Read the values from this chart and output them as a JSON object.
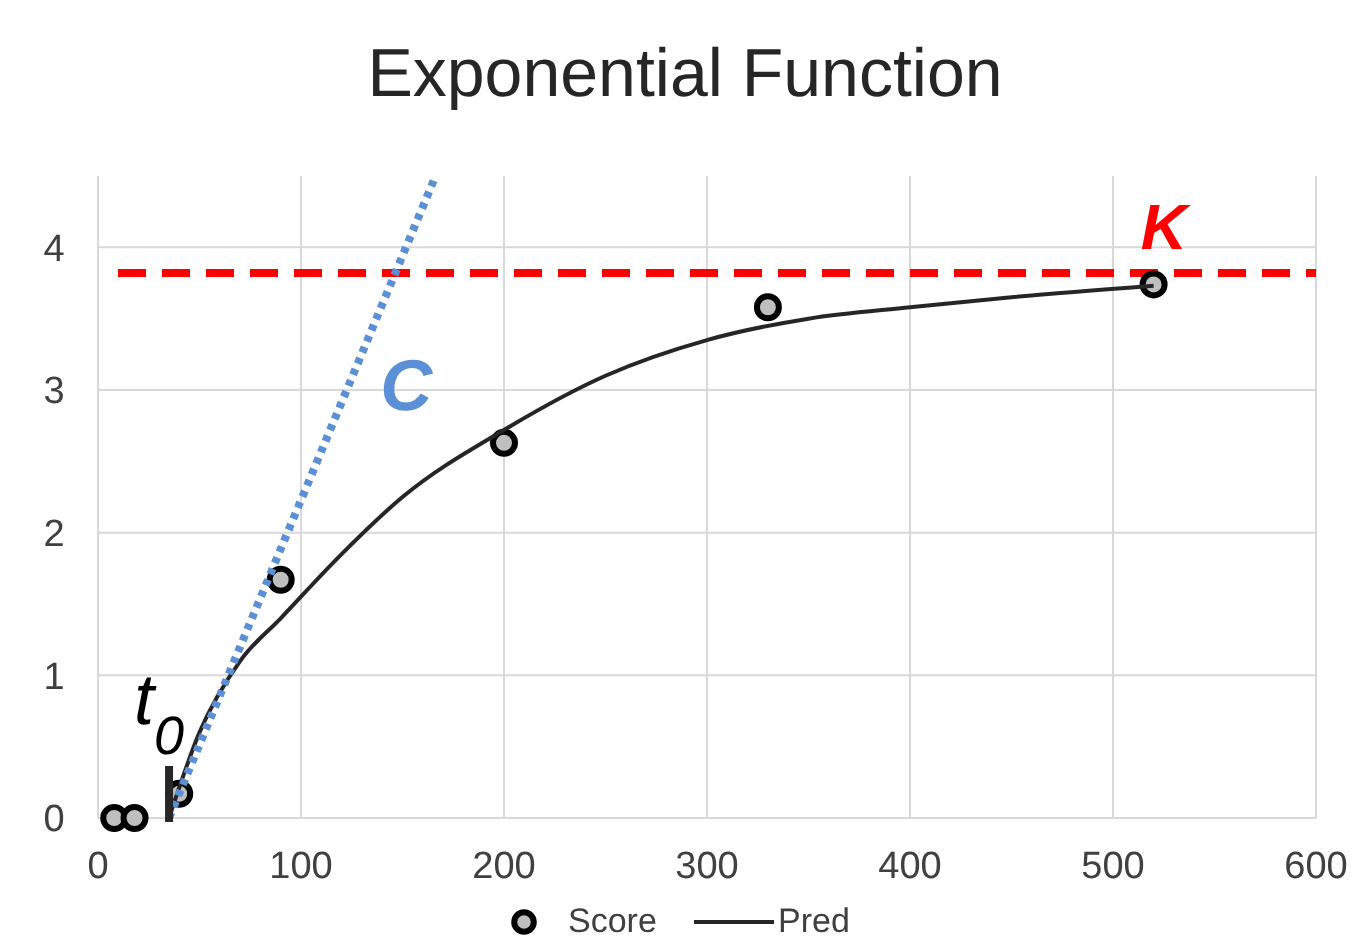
{
  "chart_data": {
    "type": "scatter",
    "title": "Exponential Function",
    "xlim": [
      0,
      600
    ],
    "ylim": [
      0,
      4.5
    ],
    "xticks": [
      0,
      100,
      200,
      300,
      400,
      500,
      600
    ],
    "yticks": [
      0,
      1,
      2,
      3,
      4
    ],
    "grid": true,
    "legend": "bottom",
    "series": [
      {
        "name": "Score",
        "marker": "circle",
        "color": "#bfbfbf",
        "x": [
          8,
          18,
          40,
          90,
          200,
          330,
          520
        ],
        "values": [
          0,
          0,
          0.17,
          1.67,
          2.63,
          3.58,
          3.74
        ]
      },
      {
        "name": "Pred",
        "type": "line",
        "line_style": "solid",
        "color": "#262626",
        "x": [
          35,
          50,
          70,
          90,
          120,
          150,
          200,
          250,
          300,
          350,
          400,
          450,
          520
        ],
        "values": [
          0,
          0.6,
          1.1,
          1.4,
          1.85,
          2.25,
          2.72,
          3.1,
          3.35,
          3.5,
          3.58,
          3.65,
          3.73
        ]
      },
      {
        "type": "line",
        "line_style": "dotted",
        "color": "#5b8fd6",
        "x": [
          35,
          166
        ],
        "values": [
          0,
          4.49
        ]
      }
    ],
    "ref_lines": [
      {
        "axis": "y",
        "value": 3.82,
        "label": "K",
        "color": "#ff0000",
        "line_style": "dashed"
      }
    ],
    "annotations": [
      "C",
      "t$_{0}$"
    ]
  }
}
